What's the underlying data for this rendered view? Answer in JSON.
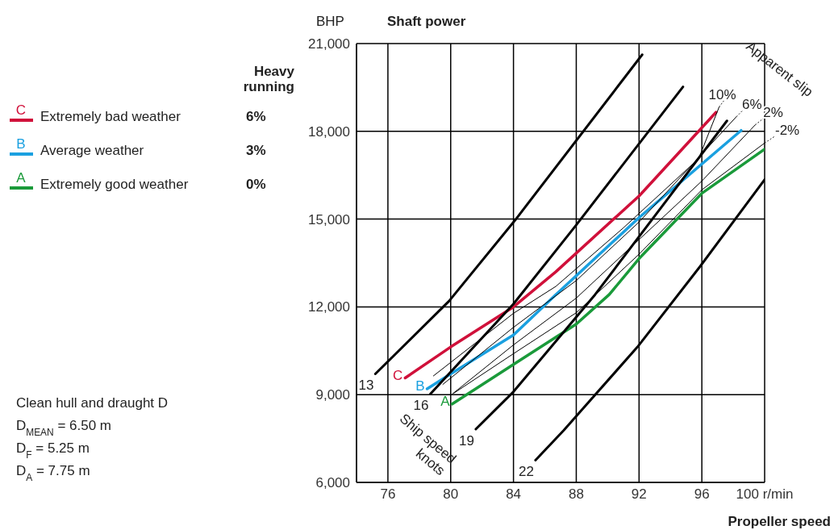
{
  "chart_data": {
    "type": "line",
    "title": "Shaft power",
    "ylabel": "BHP",
    "xlabel": "Propeller speed",
    "legend_title": "Heavy running",
    "xlim": [
      74,
      100
    ],
    "xticks": [
      76,
      80,
      84,
      88,
      92,
      96,
      {
        "value": 100,
        "label": "100 r/min"
      }
    ],
    "ylim": [
      6000,
      21000
    ],
    "yticks": [
      {
        "value": 6000,
        "label": "6,000"
      },
      {
        "value": 9000,
        "label": "9,000"
      },
      {
        "value": 12000,
        "label": "12,000"
      },
      {
        "value": 15000,
        "label": "15,000"
      },
      {
        "value": 18000,
        "label": "18,000"
      },
      {
        "value": 21000,
        "label": "21,000"
      }
    ],
    "grid": true,
    "legend": "left",
    "marker": "none",
    "line_style": "solid",
    "series": [
      {
        "name": "Extremely bad weather",
        "color": "#d0103a",
        "x": [
          77.1,
          80,
          84,
          86.7,
          92,
          96.9
        ],
        "values": [
          9570,
          10630,
          12000,
          13200,
          15790,
          18650
        ]
      },
      {
        "name": "Average weather",
        "color": "#1aa0e0",
        "x": [
          78.5,
          80,
          84,
          86.7,
          92,
          98.5
        ],
        "values": [
          9200,
          9710,
          11040,
          12420,
          15050,
          18030
        ]
      },
      {
        "name": "Extremely good weather",
        "color": "#1a9a3a",
        "x": [
          80.1,
          84,
          88,
          90.1,
          92,
          96,
          100
        ],
        "values": [
          8680,
          10030,
          11410,
          12420,
          13650,
          15880,
          17390
        ]
      },
      {
        "color": "#000000",
        "x": [
          75.2,
          79.9,
          84.1,
          92.2
        ],
        "values": [
          9710,
          12200,
          14960,
          20620
        ]
      },
      {
        "color": "#000000",
        "x": [
          78.7,
          84,
          88,
          94.8
        ],
        "values": [
          9020,
          12100,
          14800,
          19520
        ]
      },
      {
        "color": "#000000",
        "x": [
          81.6,
          84,
          89.2,
          97.6
        ],
        "values": [
          7820,
          9100,
          12420,
          18360
        ]
      },
      {
        "color": "#000000",
        "x": [
          85.4,
          87.2,
          91.9,
          95.9,
          100
        ],
        "values": [
          6760,
          7780,
          10630,
          13390,
          16350
        ]
      },
      {
        "color": "#000000",
        "x": [
          78.9,
          84,
          86.7,
          91,
          95.8,
          97.1
        ],
        "values": [
          9640,
          11780,
          12700,
          14700,
          17070,
          18830
        ]
      },
      {
        "color": "#000000",
        "x": [
          79.5,
          84,
          88,
          92,
          98.2
        ],
        "values": [
          9350,
          11300,
          12900,
          14900,
          18500
        ]
      },
      {
        "color": "#000000",
        "x": [
          80.1,
          84,
          88,
          92,
          96,
          99.4
        ],
        "values": [
          9020,
          10700,
          12300,
          14300,
          16300,
          18220
        ]
      },
      {
        "color": "#000000",
        "x": [
          80.2,
          84,
          88,
          92,
          96,
          100
        ],
        "values": [
          9050,
          10400,
          11800,
          13800,
          16000,
          17600
        ]
      }
    ],
    "annotations": [
      {
        "text": "C",
        "x": 77.1,
        "y": 9570
      },
      {
        "text": "B",
        "x": 78.5,
        "y": 9200
      },
      {
        "text": "A",
        "x": 80.1,
        "y": 8680
      },
      "6%",
      "3%",
      "0%",
      {
        "text": "13",
        "x": 75.2,
        "y": 9710
      },
      {
        "text": "16",
        "x": 78.7,
        "y": 9020
      },
      {
        "text": "19",
        "x": 81.6,
        "y": 7820
      },
      {
        "text": "22",
        "x": 85.4,
        "y": 6760
      },
      {
        "text": "10%",
        "x": 97.1,
        "y": 18830
      },
      {
        "text": "6%",
        "x": 98.2,
        "y": 18500
      },
      {
        "text": "2%",
        "x": 99.4,
        "y": 18220
      },
      {
        "text": "-2%",
        "x": 100,
        "y": 17600
      },
      "Apparent slip",
      "Ship speed knots",
      "Clean hull and draught D",
      "D$_{MEAN}$ = 6.50 m",
      "D$_{F}$ = 5.25 m",
      "D$_{A}$ = 7.75 m"
    ]
  }
}
